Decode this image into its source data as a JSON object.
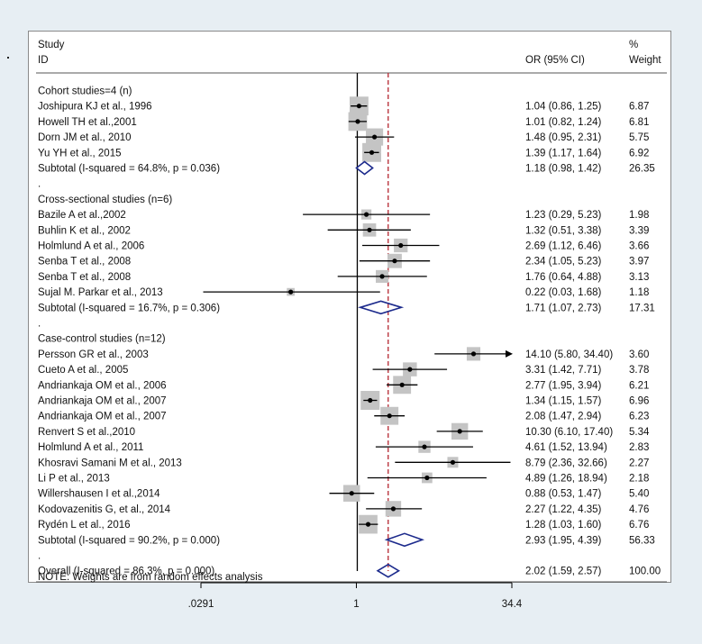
{
  "header": {
    "col_study_1": "Study",
    "col_study_2": "ID",
    "col_or": "OR (95% CI)",
    "col_weight_1": "%",
    "col_weight_2": "Weight"
  },
  "note": "NOTE: Weights are from random effects analysis",
  "colors": {
    "background": "#e7eef3",
    "panel": "#ffffff",
    "weight_box": "#c4c4c4",
    "diamond": "#1c2a8c",
    "overall_line": "#b52630",
    "axis": "#000000"
  },
  "chart_data": {
    "type": "forest",
    "scale": "log",
    "null_value": 1,
    "overall_estimate": 2.02,
    "xlim": [
      0.0291,
      34.4
    ],
    "xticks": [
      {
        "label": ".0291",
        "value": 0.0291
      },
      {
        "label": "1",
        "value": 1
      },
      {
        "label": "34.4",
        "value": 34.4
      }
    ],
    "rows": [
      {
        "kind": "group",
        "label": "Cohort studies=4 (n)"
      },
      {
        "kind": "study",
        "label": "Joshipura KJ et al., 1996",
        "or": 1.04,
        "lo": 0.86,
        "hi": 1.25,
        "ci_text": "1.04 (0.86, 1.25)",
        "weight": 6.87,
        "weight_text": "6.87"
      },
      {
        "kind": "study",
        "label": "Howell TH et al.,2001",
        "or": 1.01,
        "lo": 0.82,
        "hi": 1.24,
        "ci_text": "1.01 (0.82, 1.24)",
        "weight": 6.81,
        "weight_text": "6.81"
      },
      {
        "kind": "study",
        "label": "Dorn JM et al., 2010",
        "or": 1.48,
        "lo": 0.95,
        "hi": 2.31,
        "ci_text": "1.48 (0.95, 2.31)",
        "weight": 5.75,
        "weight_text": "5.75"
      },
      {
        "kind": "study",
        "label": "Yu YH et al., 2015",
        "or": 1.39,
        "lo": 1.17,
        "hi": 1.64,
        "ci_text": "1.39 (1.17, 1.64)",
        "weight": 6.92,
        "weight_text": "6.92"
      },
      {
        "kind": "subtotal",
        "label": "Subtotal  (I-squared = 64.8%, p = 0.036)",
        "or": 1.18,
        "lo": 0.98,
        "hi": 1.42,
        "ci_text": "1.18 (0.98, 1.42)",
        "weight": 26.35,
        "weight_text": "26.35"
      },
      {
        "kind": "spacer",
        "label": "."
      },
      {
        "kind": "group",
        "label": "Cross-sectional studies (n=6)"
      },
      {
        "kind": "study",
        "label": "Bazile A et al.,2002",
        "or": 1.23,
        "lo": 0.29,
        "hi": 5.23,
        "ci_text": "1.23 (0.29, 5.23)",
        "weight": 1.98,
        "weight_text": "1.98"
      },
      {
        "kind": "study",
        "label": "Buhlin K et al., 2002",
        "or": 1.32,
        "lo": 0.51,
        "hi": 3.38,
        "ci_text": "1.32 (0.51, 3.38)",
        "weight": 3.39,
        "weight_text": "3.39"
      },
      {
        "kind": "study",
        "label": "Holmlund A et al., 2006",
        "or": 2.69,
        "lo": 1.12,
        "hi": 6.46,
        "ci_text": "2.69 (1.12, 6.46)",
        "weight": 3.66,
        "weight_text": "3.66"
      },
      {
        "kind": "study",
        "label": "Senba T et al., 2008",
        "or": 2.34,
        "lo": 1.05,
        "hi": 5.23,
        "ci_text": "2.34 (1.05, 5.23)",
        "weight": 3.97,
        "weight_text": "3.97"
      },
      {
        "kind": "study",
        "label": "Senba T et al., 2008",
        "or": 1.76,
        "lo": 0.64,
        "hi": 4.88,
        "ci_text": "1.76 (0.64, 4.88)",
        "weight": 3.13,
        "weight_text": "3.13"
      },
      {
        "kind": "study",
        "label": "Sujal M. Parkar et al., 2013",
        "or": 0.22,
        "lo": 0.03,
        "hi": 1.68,
        "ci_text": "0.22 (0.03, 1.68)",
        "weight": 1.18,
        "weight_text": "1.18"
      },
      {
        "kind": "subtotal",
        "label": "Subtotal  (I-squared = 16.7%, p = 0.306)",
        "or": 1.71,
        "lo": 1.07,
        "hi": 2.73,
        "ci_text": "1.71 (1.07, 2.73)",
        "weight": 17.31,
        "weight_text": "17.31"
      },
      {
        "kind": "spacer",
        "label": "."
      },
      {
        "kind": "group",
        "label": "Case-control studies (n=12)"
      },
      {
        "kind": "study",
        "label": "Persson GR et al., 2003",
        "or": 14.1,
        "lo": 5.8,
        "hi": 34.4,
        "ci_text": "14.10 (5.80, 34.40)",
        "weight": 3.6,
        "weight_text": "3.60",
        "arrow": true
      },
      {
        "kind": "study",
        "label": "Cueto A et al., 2005",
        "or": 3.31,
        "lo": 1.42,
        "hi": 7.71,
        "ci_text": "3.31 (1.42, 7.71)",
        "weight": 3.78,
        "weight_text": "3.78"
      },
      {
        "kind": "study",
        "label": "Andriankaja OM et al., 2006",
        "or": 2.77,
        "lo": 1.95,
        "hi": 3.94,
        "ci_text": "2.77 (1.95, 3.94)",
        "weight": 6.21,
        "weight_text": "6.21"
      },
      {
        "kind": "study",
        "label": "Andriankaja OM et al., 2007",
        "or": 1.34,
        "lo": 1.15,
        "hi": 1.57,
        "ci_text": "1.34 (1.15, 1.57)",
        "weight": 6.96,
        "weight_text": "6.96"
      },
      {
        "kind": "study",
        "label": "Andriankaja OM et al., 2007",
        "or": 2.08,
        "lo": 1.47,
        "hi": 2.94,
        "ci_text": "2.08 (1.47, 2.94)",
        "weight": 6.23,
        "weight_text": "6.23"
      },
      {
        "kind": "study",
        "label": "Renvert S et al.,2010",
        "or": 10.3,
        "lo": 6.1,
        "hi": 17.4,
        "ci_text": "10.30 (6.10, 17.40)",
        "weight": 5.34,
        "weight_text": "5.34"
      },
      {
        "kind": "study",
        "label": "Holmlund A et al., 2011",
        "or": 4.61,
        "lo": 1.52,
        "hi": 13.94,
        "ci_text": "4.61 (1.52, 13.94)",
        "weight": 2.83,
        "weight_text": "2.83"
      },
      {
        "kind": "study",
        "label": "Khosravi Samani M et al., 2013",
        "or": 8.79,
        "lo": 2.36,
        "hi": 32.66,
        "ci_text": "8.79 (2.36, 32.66)",
        "weight": 2.27,
        "weight_text": "2.27"
      },
      {
        "kind": "study",
        "label": "Li P et al., 2013",
        "or": 4.89,
        "lo": 1.26,
        "hi": 18.94,
        "ci_text": "4.89 (1.26, 18.94)",
        "weight": 2.18,
        "weight_text": "2.18"
      },
      {
        "kind": "study",
        "label": "Willershausen I et al.,2014",
        "or": 0.88,
        "lo": 0.53,
        "hi": 1.47,
        "ci_text": "0.88 (0.53, 1.47)",
        "weight": 5.4,
        "weight_text": "5.40"
      },
      {
        "kind": "study",
        "label": "Kodovazenitis G, et al., 2014",
        "or": 2.27,
        "lo": 1.22,
        "hi": 4.35,
        "ci_text": "2.27 (1.22, 4.35)",
        "weight": 4.76,
        "weight_text": "4.76"
      },
      {
        "kind": "study",
        "label": "Rydén L et al., 2016",
        "or": 1.28,
        "lo": 1.03,
        "hi": 1.6,
        "ci_text": "1.28 (1.03, 1.60)",
        "weight": 6.76,
        "weight_text": "6.76"
      },
      {
        "kind": "subtotal",
        "label": "Subtotal  (I-squared = 90.2%, p = 0.000)",
        "or": 2.93,
        "lo": 1.95,
        "hi": 4.39,
        "ci_text": "2.93 (1.95, 4.39)",
        "weight": 56.33,
        "weight_text": "56.33"
      },
      {
        "kind": "spacer",
        "label": "."
      },
      {
        "kind": "overall",
        "label": "Overall  (I-squared = 86.3%, p = 0.000)",
        "or": 2.02,
        "lo": 1.59,
        "hi": 2.57,
        "ci_text": "2.02 (1.59, 2.57)",
        "weight": 100.0,
        "weight_text": "100.00"
      }
    ]
  }
}
